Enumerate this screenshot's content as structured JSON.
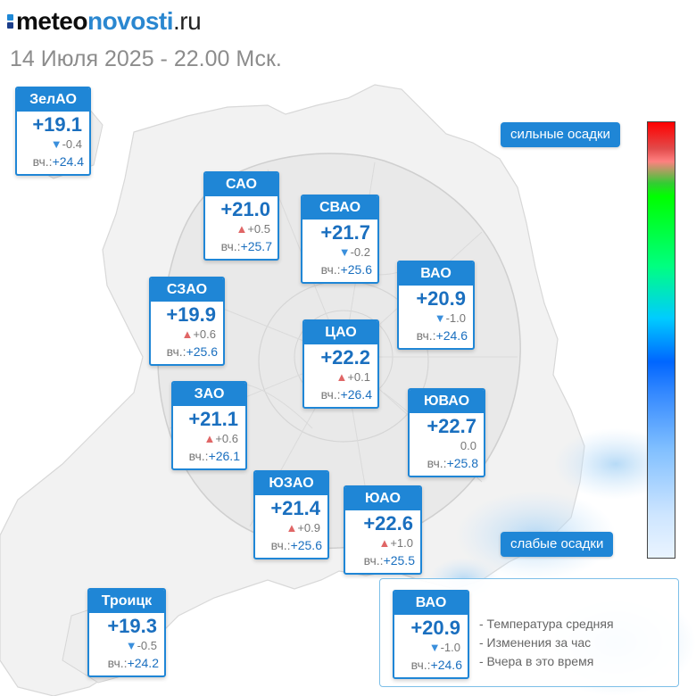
{
  "header": {
    "logo": {
      "part1": "meteo",
      "part2": "novosti",
      "part3": ".ru"
    },
    "datetime": "14 Июля 2025 - 22.00 Мск."
  },
  "common": {
    "yesterday_label": "вч.:"
  },
  "colors": {
    "accent": "#1f86d6",
    "temperature_text": "#1a6fbf",
    "rise_arrow": "#e06666",
    "fall_arrow": "#3a8fdc"
  },
  "districts": {
    "zelao": {
      "name": "ЗелАО",
      "temp": "+19.1",
      "trend": "down",
      "delta": "-0.4",
      "yesterday": "+24.4"
    },
    "sao": {
      "name": "САО",
      "temp": "+21.0",
      "trend": "up",
      "delta": "+0.5",
      "yesterday": "+25.7"
    },
    "svao": {
      "name": "СВАО",
      "temp": "+21.7",
      "trend": "down",
      "delta": "-0.2",
      "yesterday": "+25.6"
    },
    "vao": {
      "name": "ВАО",
      "temp": "+20.9",
      "trend": "down",
      "delta": "-1.0",
      "yesterday": "+24.6"
    },
    "szao": {
      "name": "СЗАО",
      "temp": "+19.9",
      "trend": "up",
      "delta": "+0.6",
      "yesterday": "+25.6"
    },
    "cao": {
      "name": "ЦАО",
      "temp": "+22.2",
      "trend": "up",
      "delta": "+0.1",
      "yesterday": "+26.4"
    },
    "zao": {
      "name": "ЗАО",
      "temp": "+21.1",
      "trend": "up",
      "delta": "+0.6",
      "yesterday": "+26.1"
    },
    "yuvao": {
      "name": "ЮВАО",
      "temp": "+22.7",
      "trend": "none",
      "delta": "0.0",
      "yesterday": "+25.8"
    },
    "yuzao": {
      "name": "ЮЗАО",
      "temp": "+21.4",
      "trend": "up",
      "delta": "+0.9",
      "yesterday": "+25.6"
    },
    "yuao": {
      "name": "ЮАО",
      "temp": "+22.6",
      "trend": "up",
      "delta": "+1.0",
      "yesterday": "+25.5"
    },
    "troick": {
      "name": "Троицк",
      "temp": "+19.3",
      "trend": "down",
      "delta": "-0.5",
      "yesterday": "+24.2"
    }
  },
  "scale": {
    "top_label": "сильные осадки",
    "bottom_label": "слабые осадки"
  },
  "legend": {
    "example": {
      "name": "ВАО",
      "temp": "+20.9",
      "trend": "down",
      "delta": "-1.0",
      "yesterday": "+24.6"
    },
    "items": [
      "- Температура средняя",
      "- Изменения за час",
      "- Вчера в это время"
    ]
  }
}
